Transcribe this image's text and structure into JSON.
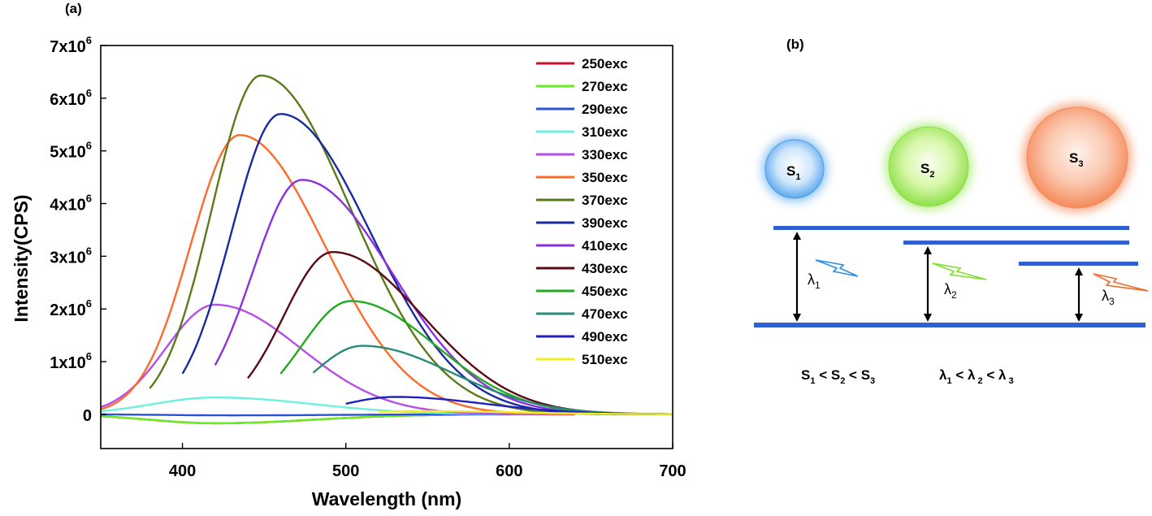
{
  "chart_data": {
    "type": "line",
    "panel_label": "(a)",
    "xlabel": "Wavelength (nm)",
    "ylabel": "Intensity(CPS)",
    "xlim": [
      350,
      700
    ],
    "ylim": [
      -650000,
      7000000
    ],
    "x_ticks": [
      400,
      500,
      600,
      700
    ],
    "y_ticks": [
      {
        "value": 0,
        "base": "0",
        "exp": ""
      },
      {
        "value": 1000000,
        "base": "1x10",
        "exp": "6"
      },
      {
        "value": 2000000,
        "base": "2x10",
        "exp": "6"
      },
      {
        "value": 3000000,
        "base": "3x10",
        "exp": "6"
      },
      {
        "value": 4000000,
        "base": "4x10",
        "exp": "6"
      },
      {
        "value": 5000000,
        "base": "5x10",
        "exp": "6"
      },
      {
        "value": 6000000,
        "base": "6x10",
        "exp": "6"
      },
      {
        "value": 7000000,
        "base": "7x10",
        "exp": "6"
      }
    ],
    "series": [
      {
        "name": "250exc",
        "color": "#c8102e",
        "start": 350,
        "end": 560,
        "peak_x": 420,
        "peak": -170000,
        "s_left": 40,
        "s_right": 60
      },
      {
        "name": "270exc",
        "color": "#66ee22",
        "start": 350,
        "end": 600,
        "peak_x": 420,
        "peak": -170000,
        "s_left": 40,
        "s_right": 60
      },
      {
        "name": "290exc",
        "color": "#2a52d8",
        "start": 350,
        "end": 640,
        "peak_x": 430,
        "peak": -20000,
        "s_left": 40,
        "s_right": 60
      },
      {
        "name": "310exc",
        "color": "#6ef0e0",
        "start": 350,
        "end": 620,
        "peak_x": 420,
        "peak": 320000,
        "s_left": 38,
        "s_right": 60
      },
      {
        "name": "330exc",
        "color": "#b44ee8",
        "start": 350,
        "end": 640,
        "peak_x": 420,
        "peak": 2080000,
        "s_left": 30,
        "s_right": 52
      },
      {
        "name": "350exc",
        "color": "#ff6a2a",
        "start": 350,
        "end": 640,
        "peak_x": 435,
        "peak": 5300000,
        "s_left": 30,
        "s_right": 52
      },
      {
        "name": "370exc",
        "color": "#5a7a1a",
        "start": 380,
        "end": 700,
        "peak_x": 448,
        "peak": 6430000,
        "s_left": 30,
        "s_right": 55
      },
      {
        "name": "390exc",
        "color": "#1a2aa0",
        "start": 400,
        "end": 700,
        "peak_x": 460,
        "peak": 5700000,
        "s_left": 30,
        "s_right": 55
      },
      {
        "name": "410exc",
        "color": "#8a30e0",
        "start": 420,
        "end": 700,
        "peak_x": 473,
        "peak": 4450000,
        "s_left": 30,
        "s_right": 55
      },
      {
        "name": "430exc",
        "color": "#5a0a14",
        "start": 440,
        "end": 700,
        "peak_x": 492,
        "peak": 3080000,
        "s_left": 30,
        "s_right": 55
      },
      {
        "name": "450exc",
        "color": "#22aa22",
        "start": 460,
        "end": 700,
        "peak_x": 503,
        "peak": 2150000,
        "s_left": 30,
        "s_right": 52
      },
      {
        "name": "470exc",
        "color": "#2a8a78",
        "start": 480,
        "end": 700,
        "peak_x": 510,
        "peak": 1300000,
        "s_left": 30,
        "s_right": 55
      },
      {
        "name": "490exc",
        "color": "#2020c0",
        "start": 500,
        "end": 700,
        "peak_x": 530,
        "peak": 330000,
        "s_left": 30,
        "s_right": 55
      },
      {
        "name": "510exc",
        "color": "#f0f020",
        "start": 520,
        "end": 700,
        "peak_x": 545,
        "peak": 60000,
        "s_left": 35,
        "s_right": 60
      }
    ]
  },
  "diagram": {
    "panel_label": "(b)",
    "spheres": [
      {
        "base": "S",
        "sub": "1",
        "color": "#2b8fe8"
      },
      {
        "base": "S",
        "sub": "2",
        "color": "#7fe02b"
      },
      {
        "base": "S",
        "sub": "3",
        "color": "#f06a2a"
      }
    ],
    "lambdas": [
      {
        "base": "λ",
        "sub": "1",
        "color": "#2b8fe8"
      },
      {
        "base": "λ",
        "sub": "2",
        "color": "#7fe02b"
      },
      {
        "base": "λ",
        "sub": "3",
        "color": "#f06a2a"
      }
    ],
    "relation_size": {
      "a": "S",
      "sa": "1",
      "op1": " < ",
      "b": "S",
      "sb": "2",
      "op2": " < ",
      "c": "S",
      "sc": "3"
    },
    "relation_lambda": {
      "a": "λ",
      "sa": "1",
      "op1": " < ",
      "b": "λ",
      "sb": " 2",
      "op2": " < ",
      "c": "λ",
      "sc": " 3"
    },
    "band_color": "#2f5fd0"
  }
}
